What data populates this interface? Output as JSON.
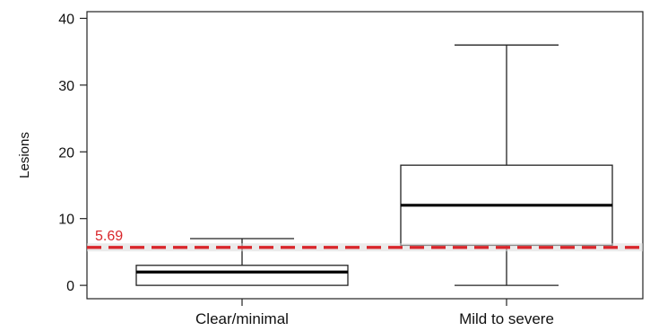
{
  "chart_data": {
    "type": "boxplot",
    "ylabel": "Lesions",
    "ylim": [
      -2,
      41
    ],
    "yticks": [
      "0",
      "10",
      "20",
      "30",
      "40"
    ],
    "categories": [
      "Clear/minimal",
      "Mild to severe"
    ],
    "boxes": [
      {
        "category": "Clear/minimal",
        "min": 0,
        "q1": 0,
        "median": 2,
        "q3": 3,
        "max": 7
      },
      {
        "category": "Mild to severe",
        "min": 0,
        "q1": 6,
        "median": 12,
        "q3": 18,
        "max": 36
      }
    ],
    "reference_line": {
      "value": 5.69,
      "label": "5.69",
      "color": "#d9262b",
      "style": "dashed"
    },
    "grid": false,
    "legend": "none"
  }
}
